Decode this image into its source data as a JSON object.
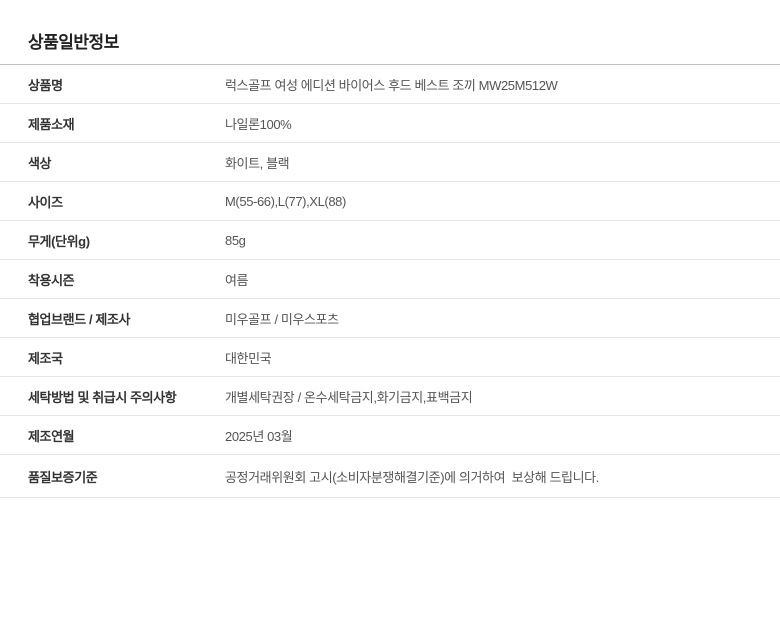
{
  "section": {
    "title": "상품일반정보"
  },
  "table": {
    "rows": [
      {
        "label": "상품명",
        "value": "럭스골프 여성 에디션 바이어스 후드 베스트 조끼 MW25M512W"
      },
      {
        "label": "제품소재",
        "value": "나일론100%"
      },
      {
        "label": "색상",
        "value": "화이트, 블랙"
      },
      {
        "label": "사이즈",
        "value": "M(55-66),L(77),XL(88)"
      },
      {
        "label": "무게(단위g)",
        "value": "85g"
      },
      {
        "label": "착용시즌",
        "value": "여름"
      },
      {
        "label": "협업브랜드 / 제조사",
        "value": "미우골프 / 미우스포츠"
      },
      {
        "label": "제조국",
        "value": "대한민국"
      },
      {
        "label": "세탁방법 및 취급시 주의사항",
        "value": "개별세탁권장 / 온수세탁금지,화기금지,표백금지"
      },
      {
        "label": "제조연월",
        "value": "2025년 03월"
      },
      {
        "label": "품질보증기준",
        "value": "공정거래위원회 고시(소비자분쟁해결기준)에 의거하여  보상해 드립니다."
      }
    ]
  },
  "colors": {
    "title_text": "#222222",
    "label_text": "#333333",
    "value_text": "#555555",
    "table_top_border": "#c2c2c2",
    "row_border": "#e6e6e6",
    "background": "#ffffff"
  }
}
